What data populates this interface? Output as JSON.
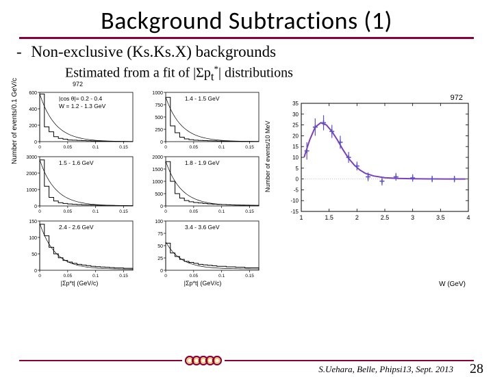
{
  "title": "Background Subtractions (1)",
  "subtitle_prefix": "-",
  "subtitle": "Non-exclusive (Ks.Ks.X) backgrounds",
  "estimated_pre": "Estimated from a fit  of |Σp",
  "estimated_sub": "t",
  "estimated_sup": "*",
  "estimated_post": "| distributions",
  "left_panels": {
    "top_label": "972",
    "yaxis_label": "Number of events/0.1 GeV/c",
    "xaxis_label": "|Σp*t| (GeV/c)",
    "panels": [
      {
        "label1": "|cos θ|= 0.2 - 0.4",
        "label2": "W = 1.2 - 1.3 GeV",
        "ytick_max": 600,
        "yticks": [
          0,
          200,
          400,
          600
        ],
        "bars": [
          580,
          180,
          120,
          60,
          40,
          30,
          20,
          18,
          15,
          12,
          10,
          8,
          7,
          6,
          5,
          4,
          3,
          2,
          2,
          1
        ]
      },
      {
        "label1": "1.4 - 1.5 GeV",
        "ytick_max": 1000,
        "yticks": [
          0,
          250,
          500,
          750,
          1000
        ],
        "bars": [
          900,
          320,
          180,
          90,
          55,
          40,
          30,
          25,
          20,
          18,
          15,
          12,
          10,
          9,
          8,
          7,
          6,
          5,
          4,
          3
        ]
      },
      {
        "label1": "1.5 - 1.6 GeV",
        "ytick_max": 3000,
        "yticks": [
          0,
          1000,
          2000,
          3000
        ],
        "bars": [
          2800,
          1200,
          520,
          300,
          200,
          150,
          120,
          100,
          85,
          70,
          60,
          50,
          45,
          40,
          35,
          30,
          25,
          22,
          20,
          18
        ]
      },
      {
        "label1": "1.8 - 1.9 GeV",
        "ytick_max": 2000,
        "yticks": [
          0,
          500,
          1000,
          1500,
          2000
        ],
        "bars": [
          1800,
          1000,
          500,
          320,
          220,
          170,
          140,
          120,
          100,
          85,
          72,
          62,
          55,
          48,
          42,
          38,
          34,
          30,
          27,
          24
        ]
      },
      {
        "label1": "2.4 - 2.6 GeV",
        "ytick_max": 150,
        "yticks": [
          0,
          50,
          100,
          150
        ],
        "bars": [
          140,
          105,
          70,
          50,
          38,
          30,
          25,
          21,
          18,
          16,
          14,
          12,
          11,
          10,
          9,
          8,
          7,
          7,
          6,
          6
        ]
      },
      {
        "label1": "3.4 - 3.6 GeV",
        "ytick_max": 100,
        "yticks": [
          0,
          25,
          50,
          75,
          100
        ],
        "bars": [
          55,
          35,
          28,
          22,
          18,
          16,
          14,
          12,
          11,
          10,
          9,
          8,
          8,
          7,
          7,
          6,
          6,
          5,
          5,
          5
        ]
      }
    ],
    "xticks": [
      "0",
      "0.05",
      "0.1",
      "0.15"
    ]
  },
  "right_chart": {
    "title": "972",
    "ylabel": "Number of events/10 MeV",
    "xlabel": "W (GeV)",
    "xlim": [
      1,
      4
    ],
    "xticks": [
      1,
      1.5,
      2,
      2.5,
      3,
      3.5,
      4
    ],
    "ylim": [
      -15,
      35
    ],
    "yticks": [
      -15,
      -10,
      -5,
      0,
      5,
      10,
      15,
      20,
      25,
      30,
      35
    ],
    "points": [
      {
        "x": 1.1,
        "y": 13,
        "ey": 4
      },
      {
        "x": 1.25,
        "y": 24,
        "ey": 4
      },
      {
        "x": 1.4,
        "y": 26,
        "ey": 3.5
      },
      {
        "x": 1.55,
        "y": 22,
        "ey": 3
      },
      {
        "x": 1.7,
        "y": 17,
        "ey": 3
      },
      {
        "x": 1.85,
        "y": 10,
        "ey": 2.5
      },
      {
        "x": 2.0,
        "y": 6,
        "ey": 2
      },
      {
        "x": 2.2,
        "y": 1,
        "ey": 2
      },
      {
        "x": 2.45,
        "y": -1,
        "ey": 2
      },
      {
        "x": 2.7,
        "y": 1,
        "ey": 1.8
      },
      {
        "x": 3.0,
        "y": 0.5,
        "ey": 1.7
      },
      {
        "x": 3.35,
        "y": 0,
        "ey": 1.5
      },
      {
        "x": 3.75,
        "y": 0,
        "ey": 1.5
      }
    ],
    "curve": [
      {
        "x": 1.05,
        "y": 10
      },
      {
        "x": 1.15,
        "y": 18
      },
      {
        "x": 1.25,
        "y": 24
      },
      {
        "x": 1.35,
        "y": 26
      },
      {
        "x": 1.45,
        "y": 25
      },
      {
        "x": 1.55,
        "y": 22
      },
      {
        "x": 1.65,
        "y": 18
      },
      {
        "x": 1.75,
        "y": 13.5
      },
      {
        "x": 1.85,
        "y": 9.5
      },
      {
        "x": 1.95,
        "y": 6.5
      },
      {
        "x": 2.05,
        "y": 4.2
      },
      {
        "x": 2.15,
        "y": 2.6
      },
      {
        "x": 2.3,
        "y": 1.4
      },
      {
        "x": 2.5,
        "y": 0.6
      },
      {
        "x": 2.75,
        "y": 0.25
      },
      {
        "x": 3.0,
        "y": 0.1
      },
      {
        "x": 3.3,
        "y": 0.04
      },
      {
        "x": 3.6,
        "y": 0.01
      },
      {
        "x": 3.95,
        "y": 0
      }
    ],
    "colors": {
      "marker": "#5a4fcf",
      "curve": "#7a3fbf",
      "axis": "#000000"
    }
  },
  "footer": {
    "text": "S.Uehara, Belle, Phipsi13, Sept. 2013",
    "page": "28",
    "ring_outer": "#8b0038",
    "ring_inner": "#ffb838",
    "underline_color": "#8b0038"
  }
}
